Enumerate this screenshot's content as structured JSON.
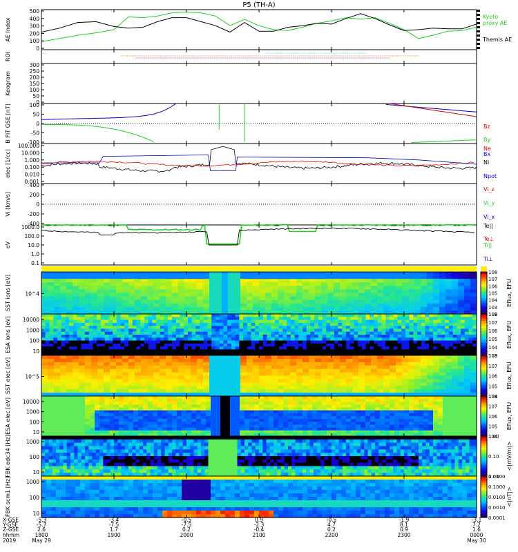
{
  "title": "P5 (TH-A)",
  "footer": {
    "row_labels": [
      "X-GSE",
      "Y-GSE",
      "Z-GSE",
      "hhmm",
      "2019"
    ],
    "columns": [
      {
        "x": "-5.3",
        "y": "-5.7",
        "z": "2.6",
        "hhmm": "1800",
        "date": "May 29"
      },
      {
        "x": "-3.4",
        "y": "-7.5",
        "z": "1.7",
        "hhmm": "1900",
        "date": ""
      },
      {
        "x": "-0.5",
        "y": "-7.5",
        "z": "0.2",
        "hhmm": "2000",
        "date": ""
      },
      {
        "x": "0.9",
        "y": "-2.3",
        "z": "-0.4",
        "hhmm": "2100",
        "date": ""
      },
      {
        "x": "-0.5",
        "y": "4.7",
        "z": "0.2",
        "hhmm": "2200",
        "date": ""
      },
      {
        "x": "-1.9",
        "y": "8.1",
        "z": "0.9",
        "hhmm": "2300",
        "date": ""
      },
      {
        "x": "-3.1",
        "y": "7.2",
        "z": "1.6",
        "hhmm": "0000",
        "date": "May 30"
      }
    ]
  },
  "chart_data": [
    {
      "type": "line",
      "panel": "ae",
      "ylabel": "AE Index",
      "ylim": [
        0,
        500
      ],
      "yticks": [
        0,
        100,
        200,
        300,
        400,
        500
      ],
      "x_hours": [
        0,
        0.25,
        0.5,
        0.75,
        1,
        1.2,
        1.4,
        1.6,
        1.8,
        2,
        2.2,
        2.4,
        2.6,
        2.8,
        3,
        3.2,
        3.4,
        3.6,
        3.8,
        4,
        4.2,
        4.4,
        4.6,
        4.8,
        5,
        5.2,
        5.4,
        5.6,
        5.8,
        6
      ],
      "series": [
        {
          "name": "Kyoto proxy AE",
          "color": "#22cc22",
          "values": [
            100,
            140,
            180,
            210,
            250,
            410,
            400,
            420,
            460,
            470,
            460,
            420,
            300,
            380,
            300,
            250,
            240,
            280,
            330,
            360,
            400,
            380,
            400,
            330,
            250,
            140,
            180,
            230,
            240,
            280
          ]
        },
        {
          "name": "Themis AE",
          "color": "#000000",
          "values": [
            220,
            270,
            340,
            350,
            290,
            270,
            280,
            350,
            400,
            400,
            350,
            300,
            220,
            340,
            230,
            230,
            280,
            300,
            330,
            320,
            390,
            450,
            390,
            310,
            240,
            250,
            270,
            260,
            260,
            320
          ]
        }
      ]
    },
    {
      "type": "line",
      "panel": "bfield",
      "ylabel": "B FIT GSE [nT]",
      "ylim": [
        -100,
        100
      ],
      "yticks": [
        -100,
        -50,
        0,
        50,
        100
      ],
      "series": [
        {
          "name": "Bz",
          "color": "#dd0000"
        },
        {
          "name": "By",
          "color": "#22cc22"
        },
        {
          "name": "Bx",
          "color": "#0000cc"
        }
      ]
    },
    {
      "type": "line",
      "panel": "density",
      "scale": "log",
      "ylabel": "elec [1/cc]",
      "yticks": [
        "100.000",
        "10.000",
        "1.000",
        "0.100",
        "0.010",
        "0.001"
      ],
      "series": [
        {
          "name": "Ne",
          "color": "#dd0000"
        },
        {
          "name": "Ni",
          "color": "#000000"
        },
        {
          "name": "Npot",
          "color": "#0000cc"
        }
      ]
    },
    {
      "type": "line",
      "panel": "velocity",
      "ylabel": "Vi [km/s]",
      "ylim": [
        -400,
        400
      ],
      "yticks": [
        -400,
        -200,
        0,
        200,
        400
      ],
      "series": [
        {
          "name": "Vi_z",
          "color": "#dd0000"
        },
        {
          "name": "Vi_y",
          "color": "#22cc22"
        },
        {
          "name": "Vi_x",
          "color": "#0000cc"
        }
      ]
    },
    {
      "type": "line",
      "panel": "temperature",
      "scale": "log",
      "ylabel": "eV",
      "yticks": [
        "1000.0",
        "100.0",
        "10.0",
        "1.0",
        "0.1"
      ],
      "series": [
        {
          "name": "Te||",
          "color": "#000000"
        },
        {
          "name": "Te⊥",
          "color": "#dd0000"
        },
        {
          "name": "Ti||",
          "color": "#22cc22"
        },
        {
          "name": "Ti⊥",
          "color": "#0000cc"
        }
      ]
    },
    {
      "type": "heatmap",
      "panel": "sst_i",
      "ylabel": "SST ions [eV]",
      "yticks": [
        "10^4"
      ],
      "colorbar": "Eflux, EFU",
      "cbar_ticks": [
        "10^8",
        "10^7",
        "10^6",
        "10^5",
        "10^4",
        "10^3",
        "10^2"
      ]
    },
    {
      "type": "heatmap",
      "panel": "esa_i",
      "ylabel": "ESA ions [eV]",
      "yticks": [
        "10000",
        "1000",
        "100",
        "10"
      ],
      "colorbar": "Eflux, EFU",
      "cbar_ticks": [
        "10^8",
        "10^7",
        "10^6",
        "10^5",
        "10^4",
        "10^3"
      ]
    },
    {
      "type": "heatmap",
      "panel": "sst_e",
      "ylabel": "SST elec [eV]",
      "yticks": [
        "10^5"
      ],
      "colorbar": "Eflux, EFU",
      "cbar_ticks": [
        "10^8",
        "10^7",
        "10^6",
        "10^5",
        "10^4"
      ]
    },
    {
      "type": "heatmap",
      "panel": "esa_e",
      "ylabel": "ESA elec [eV]",
      "yticks": [
        "10000",
        "1000",
        "100",
        "10"
      ],
      "colorbar": "Eflux, EFU",
      "cbar_ticks": [
        "10^8",
        "10^7",
        "10^6",
        "10^5",
        "10^4"
      ]
    },
    {
      "type": "heatmap",
      "panel": "fbk_e",
      "ylabel": "FBK edc34 [Hz]",
      "yticks": [
        "1000",
        "100",
        "10"
      ],
      "colorbar": "<|mV/m|>",
      "cbar_ticks": [
        "1.00",
        "0.10",
        "0.01"
      ]
    },
    {
      "type": "heatmap",
      "panel": "fbk_b",
      "ylabel": "FBK scm1 [Hz]",
      "yticks": [
        "1000",
        "100",
        "10"
      ],
      "colorbar": "<|nT|>",
      "cbar_ticks": [
        "1.0000",
        "0.1000",
        "0.0100",
        "0.0010",
        "0.0001"
      ]
    }
  ],
  "roi_label": "ROI",
  "keogram": {
    "ylabel": "Keogram",
    "yticks": [
      "300",
      "250",
      "200",
      "150",
      "100",
      "50",
      "0"
    ]
  }
}
